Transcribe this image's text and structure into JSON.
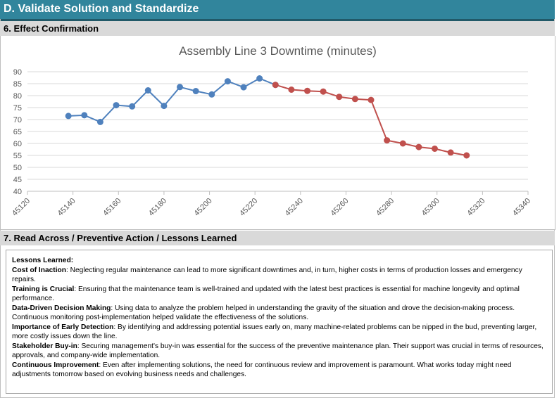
{
  "section_title": "D. Validate Solution and Standardize",
  "effect_header": "6. Effect Confirmation",
  "readacross_header": "7. Read Across / Preventive Action / Lessons Learned",
  "chart_data": {
    "type": "line",
    "title": "Assembly Line 3 Downtime (minutes)",
    "xlabel": "",
    "ylabel": "",
    "xlim": [
      45120,
      45340
    ],
    "ylim": [
      40,
      90
    ],
    "x_ticks": [
      "45120",
      "45140",
      "45160",
      "45180",
      "45200",
      "45220",
      "45240",
      "45260",
      "45280",
      "45300",
      "45320",
      "45340"
    ],
    "y_ticks": [
      "40",
      "45",
      "50",
      "55",
      "60",
      "65",
      "70",
      "75",
      "80",
      "85",
      "90"
    ],
    "grid": "horizontal",
    "legend": "none",
    "series": [
      {
        "color": "#4f81bd",
        "x": [
          45138,
          45145,
          45152,
          45159,
          45166,
          45173,
          45180,
          45187,
          45194,
          45201,
          45208,
          45215,
          45222,
          45229
        ],
        "y": [
          71.5,
          71.8,
          69,
          76,
          75.5,
          82.2,
          75.7,
          83.6,
          81.9,
          80.5,
          86,
          83.5,
          87.2,
          84.5
        ]
      },
      {
        "color": "#c0504d",
        "x": [
          45229,
          45236,
          45243,
          45250,
          45257,
          45264,
          45271,
          45278,
          45285,
          45292,
          45299,
          45306,
          45313
        ],
        "y": [
          84.5,
          82.5,
          82,
          81.7,
          79.5,
          78.6,
          78.2,
          61.3,
          60,
          58.5,
          57.8,
          56.2,
          55
        ]
      }
    ]
  },
  "lessons": {
    "heading": "Lessons Learned:",
    "items": [
      {
        "title": "Cost of Inaction",
        "text": ": Neglecting regular maintenance can lead to more significant downtimes and, in turn, higher costs in terms of production losses and emergency repairs."
      },
      {
        "title": "Training is Crucial",
        "text": ": Ensuring that the maintenance team is well-trained and updated with the latest best practices is essential for machine longevity and optimal performance."
      },
      {
        "title": "Data-Driven Decision Making",
        "text": ": Using data to analyze the problem helped in understanding the gravity of the situation and drove the decision-making process. Continuous monitoring post-implementation helped validate the effectiveness of the solutions."
      },
      {
        "title": "Importance of Early Detection",
        "text": ": By identifying and addressing potential issues early on, many machine-related problems can be nipped in the bud, preventing larger, more costly issues down the line."
      },
      {
        "title": "Stakeholder Buy-in",
        "text": ": Securing management's buy-in was essential for the success of the preventive maintenance plan. Their support was crucial in terms of resources, approvals, and company-wide implementation."
      },
      {
        "title": "Continuous Improvement",
        "text": ": Even after implementing solutions, the need for continuous review and improvement is paramount. What works today might need adjustments tomorrow based on evolving business needs and challenges."
      }
    ]
  }
}
